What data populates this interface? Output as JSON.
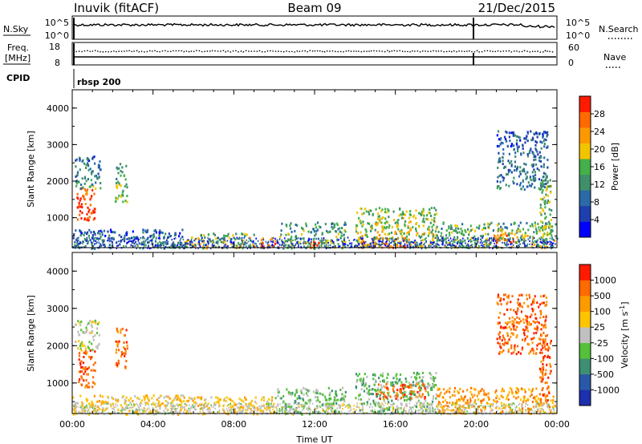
{
  "header": {
    "radar": "Inuvik (fitACF)",
    "beam": "Beam 09",
    "date": "21/Dec/2015"
  },
  "top_panels": {
    "nsky_label": "N.Sky",
    "nsky_ticks": [
      "10^5",
      "10^0"
    ],
    "nsearch_label": "N.Search",
    "nsearch_ticks": [
      "10^5",
      "10^0"
    ],
    "freq_label_1": "Freq.",
    "freq_label_2": "[MHz]",
    "freq_ticks": [
      "18",
      "8"
    ],
    "nave_label": "Nave",
    "nave_ticks": [
      "60",
      "0"
    ],
    "cpid_label": "CPID",
    "cpid_value": "rbsp 200"
  },
  "chart_data": [
    {
      "type": "heatmap",
      "ylabel": "Slant Range [km]",
      "yticks": [
        "4000",
        "3000",
        "2000",
        "1000"
      ],
      "ytick_values": [
        4000,
        3000,
        2000,
        1000
      ],
      "ylim": [
        180,
        4500
      ],
      "xlim": [
        "00:00",
        "24:00"
      ],
      "colorbar": {
        "label": "Power [dB]",
        "ticks": [
          "28",
          "24",
          "20",
          "16",
          "12",
          "8",
          "4"
        ],
        "range": [
          0,
          32
        ],
        "colors": [
          "#0000ff",
          "#1e3fae",
          "#2a6aa6",
          "#3e8f6a",
          "#45b04a",
          "#f2c400",
          "#ff9800",
          "#ff6a00",
          "#ff1a00"
        ]
      },
      "regions": [
        {
          "t": [
            0.2,
            1.1
          ],
          "r": [
            900,
            1900
          ],
          "level": 30
        },
        {
          "t": [
            0.1,
            1.4
          ],
          "r": [
            1800,
            2700
          ],
          "level": 10
        },
        {
          "t": [
            2.1,
            2.7
          ],
          "r": [
            1400,
            2500
          ],
          "level": 14
        },
        {
          "t": [
            0.0,
            5.5
          ],
          "r": [
            180,
            700
          ],
          "level": 8
        },
        {
          "t": [
            5.5,
            9.0
          ],
          "r": [
            180,
            600
          ],
          "level": 18
        },
        {
          "t": [
            9.2,
            10.3
          ],
          "r": [
            180,
            500
          ],
          "level": 28
        },
        {
          "t": [
            10.3,
            13.5
          ],
          "r": [
            180,
            900
          ],
          "level": 14
        },
        {
          "t": [
            11.7,
            12.2
          ],
          "r": [
            180,
            400
          ],
          "level": 28
        },
        {
          "t": [
            14.0,
            18.0
          ],
          "r": [
            200,
            1300
          ],
          "level": 18
        },
        {
          "t": [
            14.2,
            16.5
          ],
          "r": [
            200,
            500
          ],
          "level": 26
        },
        {
          "t": [
            18.0,
            23.9
          ],
          "r": [
            200,
            900
          ],
          "level": 16
        },
        {
          "t": [
            20.8,
            22.0
          ],
          "r": [
            300,
            700
          ],
          "level": 26
        },
        {
          "t": [
            23.1,
            23.7
          ],
          "r": [
            500,
            2200
          ],
          "level": 16
        },
        {
          "t": [
            21.0,
            23.5
          ],
          "r": [
            1800,
            3400
          ],
          "level": 8
        }
      ]
    },
    {
      "type": "heatmap",
      "ylabel": "Slant Range [km]",
      "yticks": [
        "4000",
        "3000",
        "2000",
        "1000"
      ],
      "ytick_values": [
        4000,
        3000,
        2000,
        1000
      ],
      "ylim": [
        180,
        4500
      ],
      "xlabel": "Time UT",
      "xticks": [
        "00:00",
        "04:00",
        "08:00",
        "12:00",
        "16:00",
        "20:00",
        "00:00"
      ],
      "xtick_hours": [
        0,
        4,
        8,
        12,
        16,
        20,
        24
      ],
      "xlim": [
        "00:00",
        "24:00"
      ],
      "colorbar": {
        "label": "Velocity [m s^-1]",
        "ticks": [
          "1000",
          "500",
          "100",
          "25",
          "-25",
          "-100",
          "-500",
          "-1000"
        ],
        "colors": [
          "#1e2fb0",
          "#2a58a8",
          "#3d8f73",
          "#55c03a",
          "#c0c0c0",
          "#ffc400",
          "#ff9a00",
          "#ff6a00",
          "#ff1a00"
        ]
      },
      "regions": [
        {
          "t": [
            0.2,
            1.1
          ],
          "r": [
            900,
            1900
          ],
          "level": 7
        },
        {
          "t": [
            0.1,
            1.3
          ],
          "r": [
            1900,
            2700
          ],
          "level": 4
        },
        {
          "t": [
            2.1,
            2.7
          ],
          "r": [
            1400,
            2500
          ],
          "level": 7
        },
        {
          "t": [
            0.0,
            5.5
          ],
          "r": [
            180,
            700
          ],
          "level": 5
        },
        {
          "t": [
            5.5,
            10.0
          ],
          "r": [
            180,
            650
          ],
          "level": 5
        },
        {
          "t": [
            10.0,
            13.5
          ],
          "r": [
            180,
            900
          ],
          "level": 3
        },
        {
          "t": [
            14.0,
            18.0
          ],
          "r": [
            200,
            1300
          ],
          "level": 3
        },
        {
          "t": [
            15.0,
            17.5
          ],
          "r": [
            600,
            1000
          ],
          "level": 7
        },
        {
          "t": [
            18.0,
            23.9
          ],
          "r": [
            200,
            900
          ],
          "level": 6
        },
        {
          "t": [
            23.1,
            23.7
          ],
          "r": [
            500,
            2200
          ],
          "level": 7
        },
        {
          "t": [
            21.0,
            23.5
          ],
          "r": [
            1800,
            3400
          ],
          "level": 7
        }
      ]
    }
  ]
}
